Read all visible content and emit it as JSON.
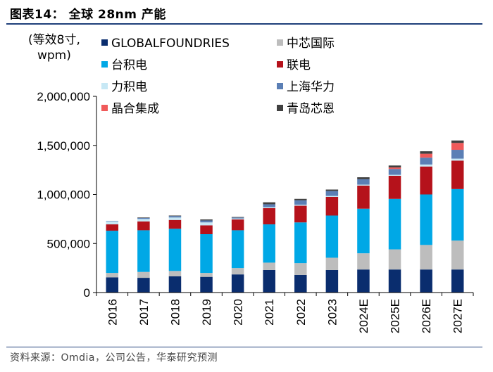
{
  "title": "图表14：  全球 28nm 产能",
  "unit_label_line1": "(等效8寸,",
  "unit_label_line2": "wpm)",
  "source": "资料来源：Omdia，公司公告，华泰研究预测",
  "chart_data": {
    "type": "bar",
    "stacked": true,
    "title": "全球 28nm 产能",
    "ylabel": "(等效8寸, wpm)",
    "ylim": [
      0,
      2000000
    ],
    "yticks": [
      0,
      500000,
      1000000,
      1500000,
      2000000
    ],
    "ytick_labels": [
      "0",
      "500,000",
      "1,000,000",
      "1,500,000",
      "2,000,000"
    ],
    "categories": [
      "2016",
      "2017",
      "2018",
      "2019",
      "2020",
      "2021",
      "2022",
      "2023",
      "2024E",
      "2025E",
      "2026E",
      "2027E"
    ],
    "series": [
      {
        "name": "GLOBALFOUNDRIES",
        "color": "#0a2d6e",
        "values": [
          155000,
          150000,
          165000,
          160000,
          185000,
          230000,
          180000,
          230000,
          235000,
          235000,
          235000,
          235000
        ]
      },
      {
        "name": "中芯国际",
        "color": "#bdbdbd",
        "values": [
          45000,
          60000,
          55000,
          40000,
          65000,
          75000,
          120000,
          125000,
          165000,
          205000,
          250000,
          295000
        ]
      },
      {
        "name": "台积电",
        "color": "#00a8e6",
        "values": [
          430000,
          425000,
          430000,
          395000,
          385000,
          390000,
          415000,
          430000,
          455000,
          515000,
          515000,
          525000
        ]
      },
      {
        "name": "联电",
        "color": "#b5121b",
        "values": [
          65000,
          90000,
          90000,
          90000,
          110000,
          165000,
          170000,
          190000,
          235000,
          235000,
          285000,
          290000
        ]
      },
      {
        "name": "力积电",
        "color": "#c7e8f5",
        "values": [
          30000,
          25000,
          25000,
          30000,
          10000,
          10000,
          10000,
          10000,
          10000,
          10000,
          20000,
          20000
        ]
      },
      {
        "name": "上海华力",
        "color": "#5b7fb5",
        "values": [
          5000,
          10000,
          15000,
          20000,
          10000,
          30000,
          45000,
          50000,
          55000,
          60000,
          70000,
          90000
        ]
      },
      {
        "name": "晶合集成",
        "color": "#f05a5a",
        "values": [
          0,
          0,
          0,
          0,
          0,
          0,
          0,
          0,
          0,
          15000,
          40000,
          70000
        ]
      },
      {
        "name": "青岛芯恩",
        "color": "#404040",
        "values": [
          0,
          5000,
          5000,
          10000,
          5000,
          20000,
          15000,
          15000,
          20000,
          20000,
          25000,
          25000
        ]
      }
    ],
    "legend": {
      "position": "top",
      "columns": 2
    }
  }
}
